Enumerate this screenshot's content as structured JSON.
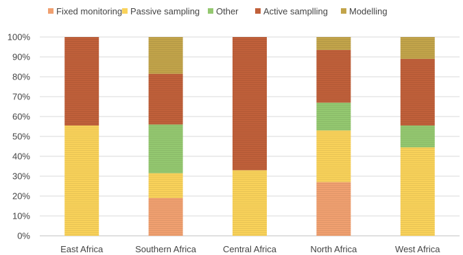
{
  "chart_data": {
    "type": "bar",
    "stacked": true,
    "percent": true,
    "categories": [
      "East Africa",
      "Southern Africa",
      "Central Africa",
      "North Africa",
      "West Africa"
    ],
    "series": [
      {
        "name": "Fixed monitoring",
        "color": "#F0A070",
        "values": [
          0,
          19,
          0,
          27,
          0
        ]
      },
      {
        "name": "Passive sampling",
        "color": "#F9D25A",
        "values": [
          55.5,
          12.5,
          33,
          26,
          44.5
        ]
      },
      {
        "name": "Other",
        "color": "#94C870",
        "values": [
          0,
          24.5,
          0,
          14,
          11
        ]
      },
      {
        "name": "Active samplling",
        "color": "#C0603A",
        "values": [
          44.5,
          25.5,
          67,
          26.5,
          33.5
        ]
      },
      {
        "name": "Modelling",
        "color": "#C2A44A",
        "values": [
          0,
          18.5,
          0,
          6.5,
          11
        ]
      }
    ],
    "yticks": [
      "0%",
      "10%",
      "20%",
      "30%",
      "40%",
      "50%",
      "60%",
      "70%",
      "80%",
      "90%",
      "100%"
    ],
    "ylim": [
      0,
      100
    ],
    "grid": true,
    "legend_position": "top",
    "title": "",
    "xlabel": "",
    "ylabel": ""
  }
}
